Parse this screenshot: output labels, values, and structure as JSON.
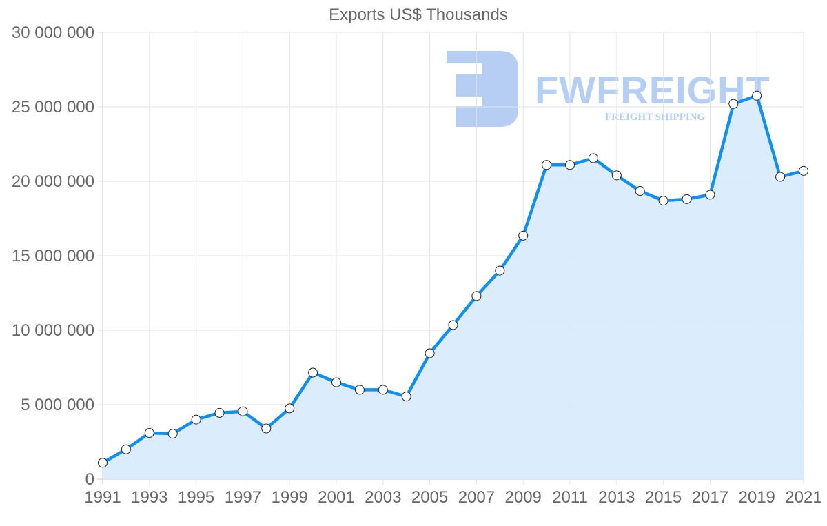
{
  "chart_data": {
    "type": "line",
    "title": "Exports US$ Thousands",
    "xlabel": "",
    "ylabel": "",
    "ylim": [
      0,
      30000000
    ],
    "yticks": [
      "0",
      "5 000 000",
      "10 000 000",
      "15 000 000",
      "20 000 000",
      "25 000 000",
      "30 000 000"
    ],
    "xticks": [
      "1991",
      "1993",
      "1995",
      "1997",
      "1999",
      "2001",
      "2003",
      "2005",
      "2007",
      "2009",
      "2011",
      "2013",
      "2015",
      "2017",
      "2019",
      "2021"
    ],
    "grid": true,
    "fill": true,
    "line_color": "#118ff0",
    "fill_color": "#d9ecfc",
    "x": [
      1991,
      1992,
      1993,
      1994,
      1995,
      1996,
      1997,
      1998,
      1999,
      2000,
      2001,
      2002,
      2003,
      2004,
      2005,
      2006,
      2007,
      2008,
      2009,
      2010,
      2011,
      2012,
      2013,
      2014,
      2015,
      2016,
      2017,
      2018,
      2019,
      2020,
      2021
    ],
    "series": [
      {
        "name": "Exports US$ Thousands",
        "values": [
          1100000,
          2000000,
          3100000,
          3050000,
          4000000,
          4450000,
          4550000,
          3400000,
          4750000,
          7150000,
          6500000,
          6000000,
          6000000,
          5550000,
          8450000,
          10350000,
          12300000,
          14000000,
          16350000,
          21100000,
          21100000,
          21550000,
          20400000,
          19350000,
          18700000,
          18800000,
          19100000,
          25200000,
          25750000,
          20300000,
          20700000
        ]
      }
    ]
  },
  "watermark": {
    "brand": "FWFREIGHT",
    "tagline": "FREIGHT SHIPPING",
    "color": "#a9c6f2"
  }
}
